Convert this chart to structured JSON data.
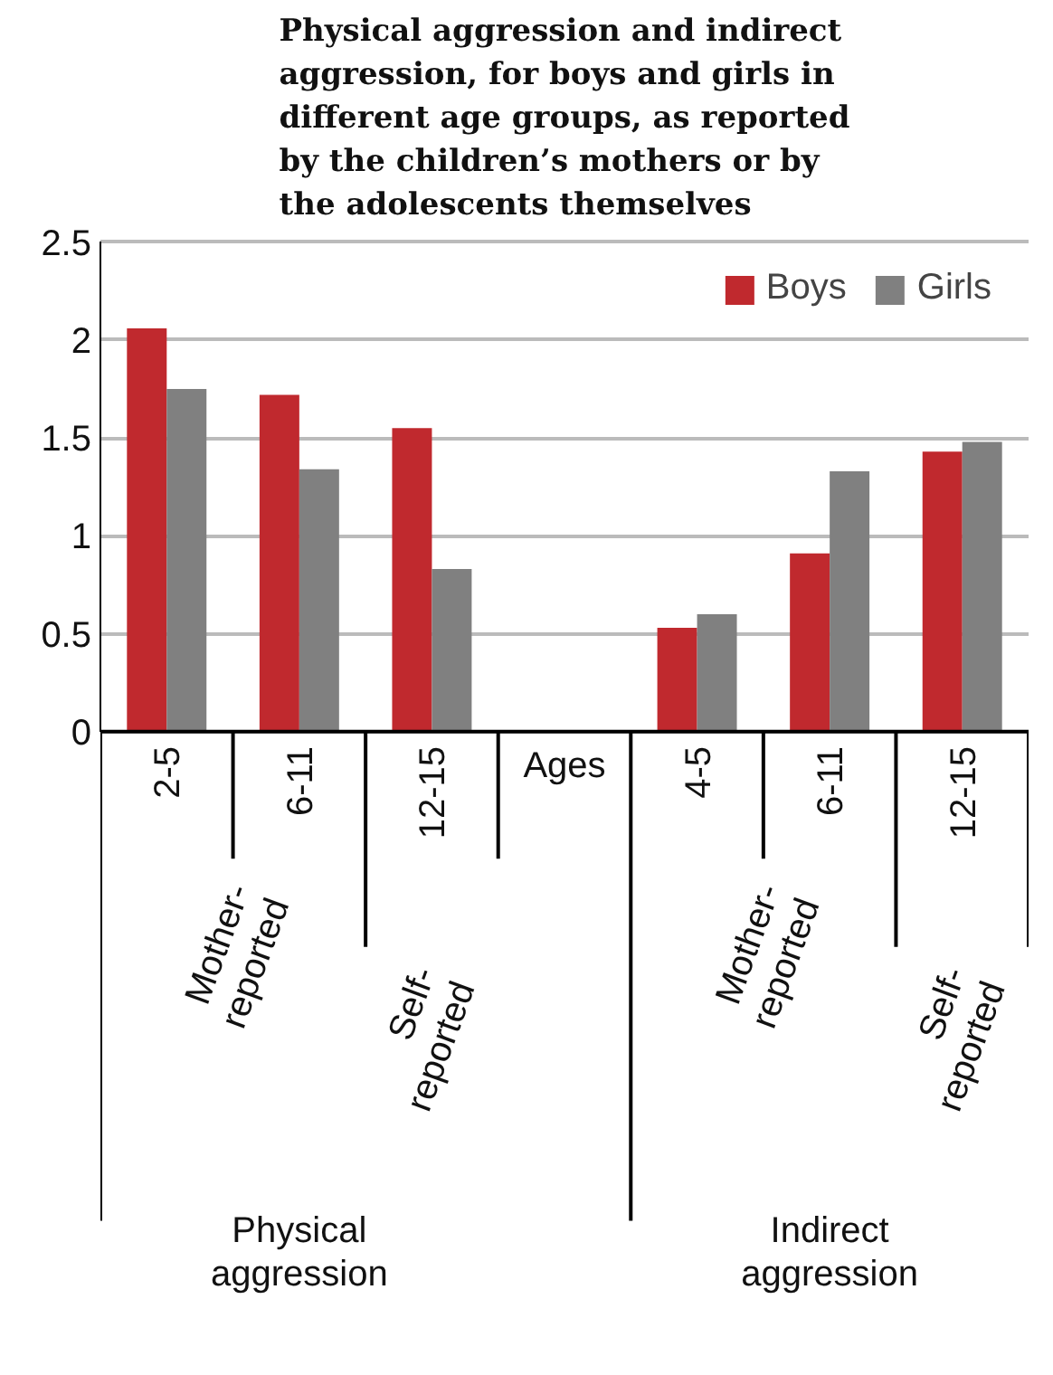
{
  "chart_data": {
    "type": "bar",
    "title": "Physical aggression and indirect aggression, for boys and girls in different age groups, as reported by the children’s mothers or by the adolescents themselves",
    "categories": [
      "2-5",
      "6-11",
      "12-15",
      "Ages",
      "4-5",
      "6-11",
      "12-15"
    ],
    "series": [
      {
        "name": "Boys",
        "color": "#c0292e",
        "values": [
          2.06,
          1.72,
          1.55,
          null,
          0.53,
          0.91,
          1.43
        ]
      },
      {
        "name": "Girls",
        "color": "#808080",
        "values": [
          1.75,
          1.34,
          0.83,
          null,
          0.6,
          1.33,
          1.48
        ]
      }
    ],
    "ylim": [
      0,
      2.5
    ],
    "yticks": [
      0,
      0.5,
      1,
      1.5,
      2,
      2.5
    ],
    "grid": "y",
    "legend": "top right",
    "annotations": [
      "Mother-reported",
      "Self-reported",
      "Mother-reported",
      "Self-reported",
      "Physical aggression",
      "Indirect aggression"
    ]
  }
}
